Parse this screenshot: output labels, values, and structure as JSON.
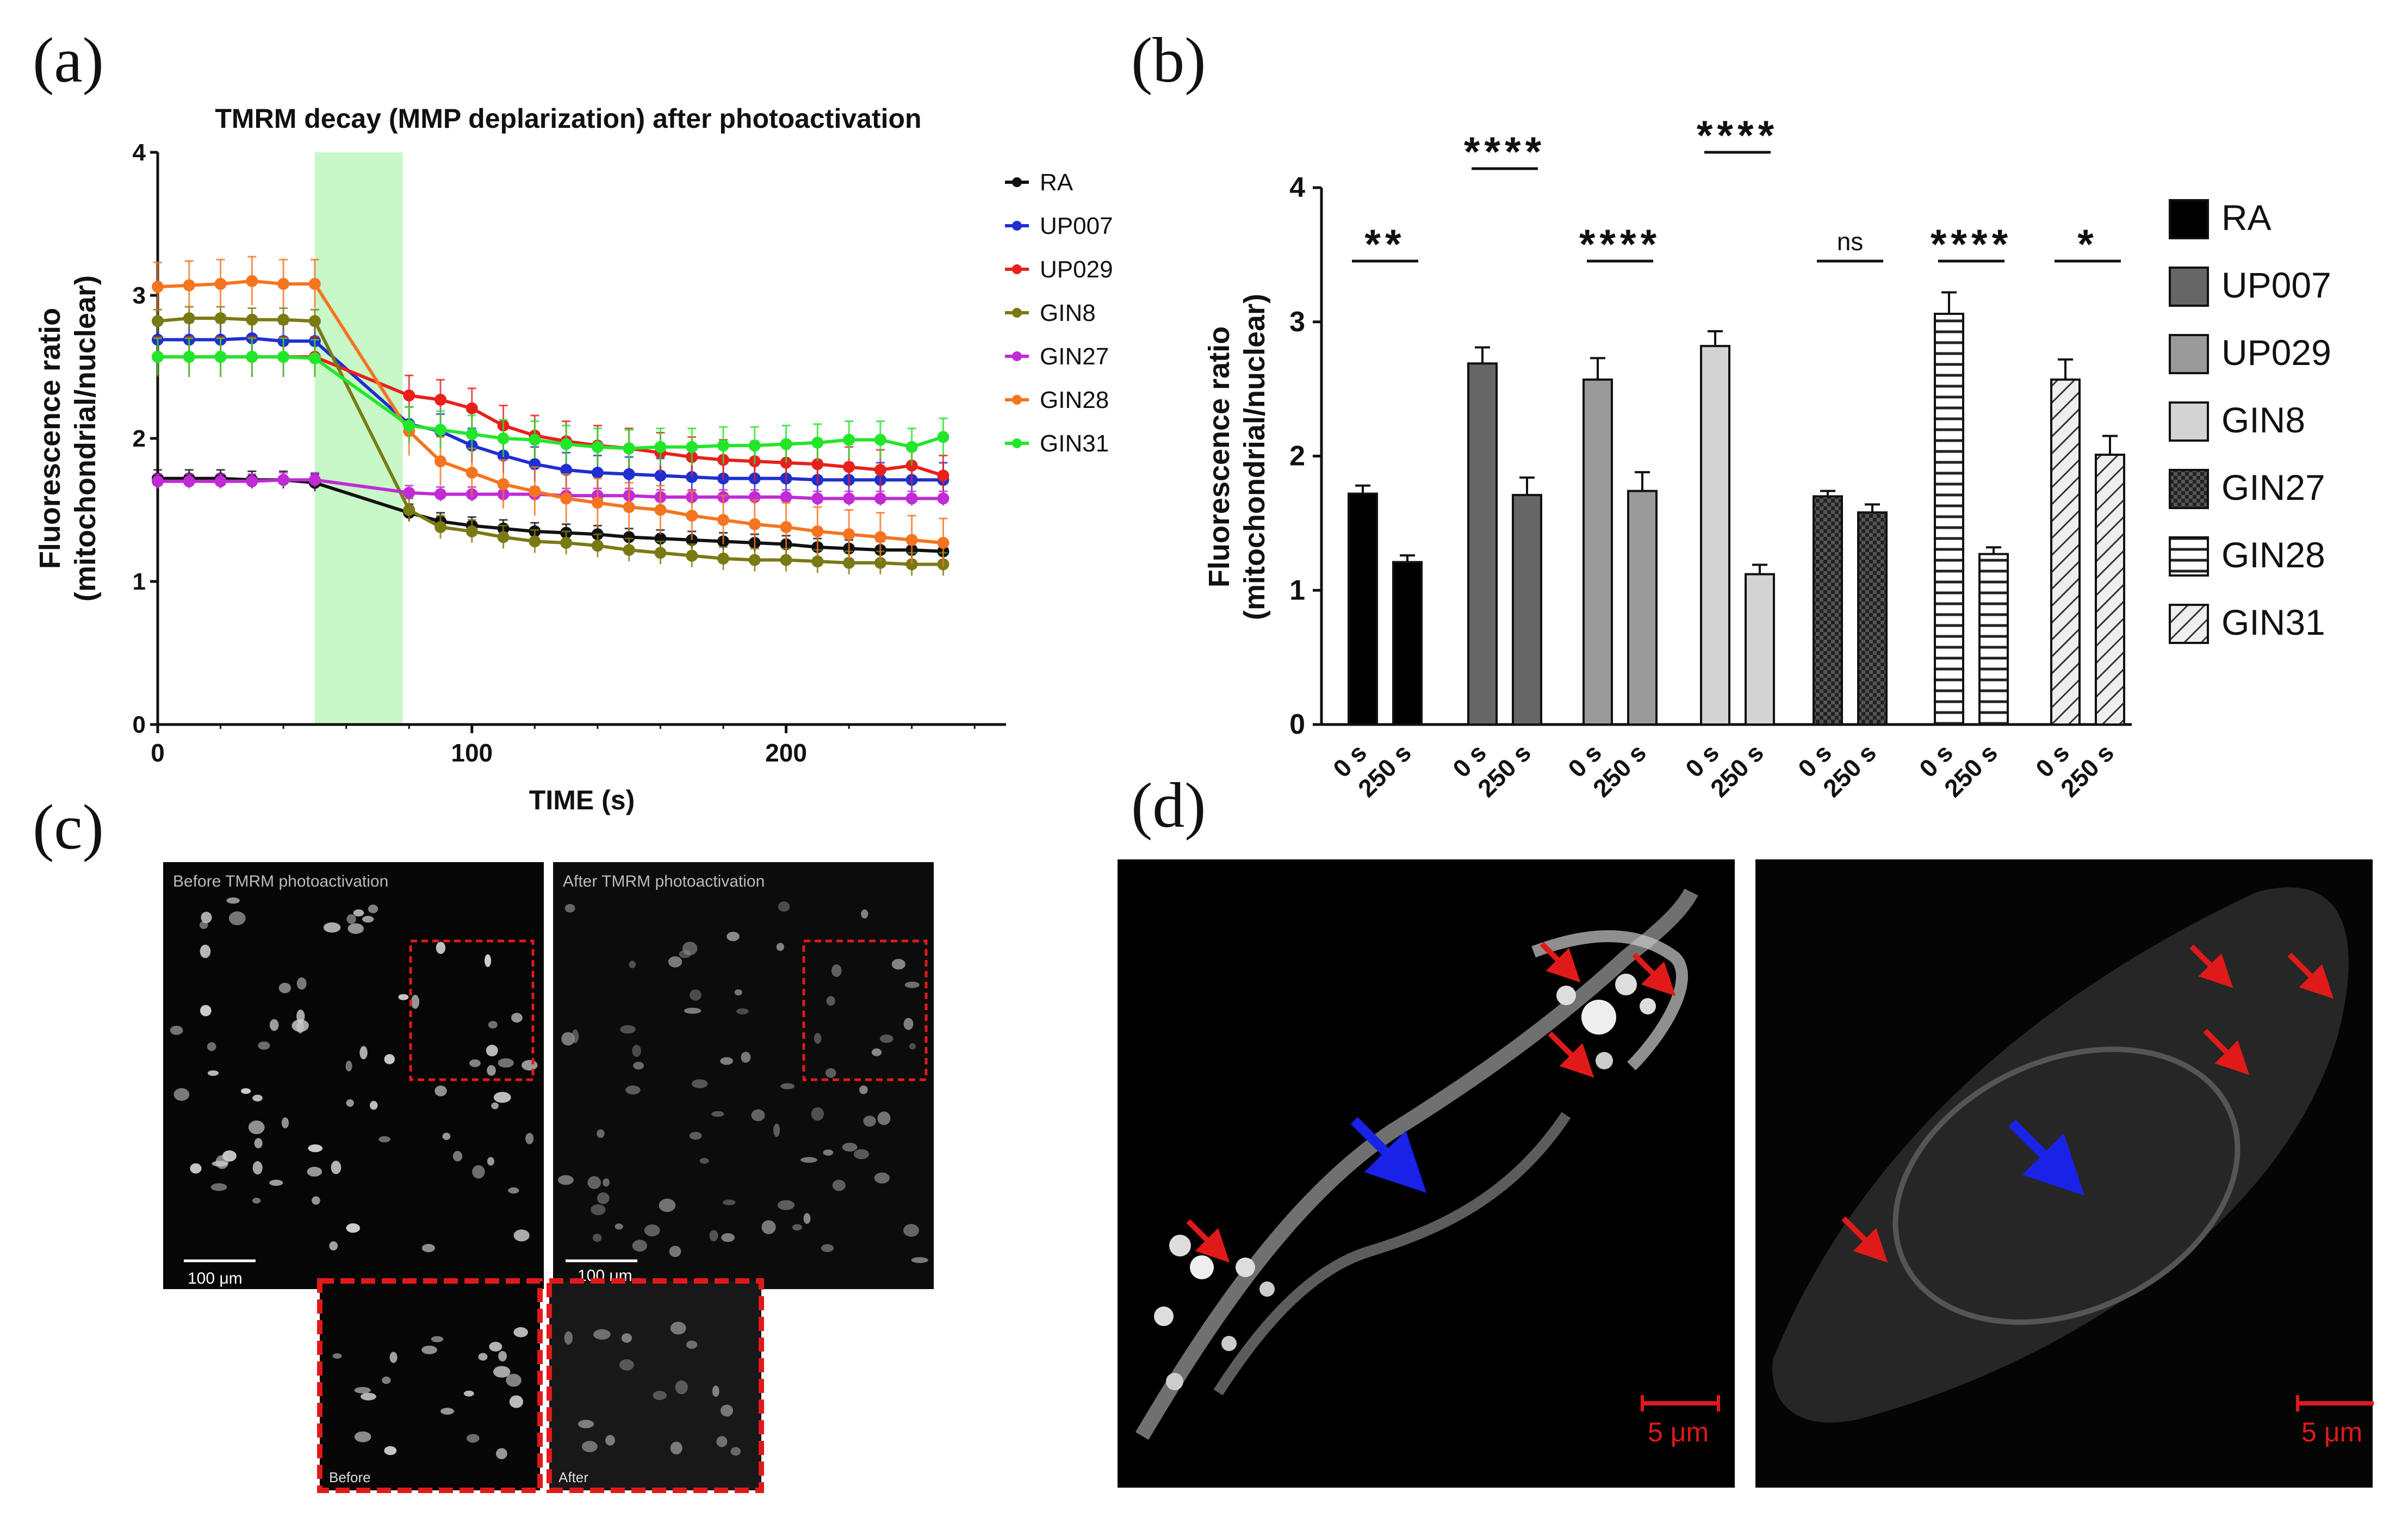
{
  "panel_labels": {
    "a": "(a)",
    "b": "(b)",
    "c": "(c)",
    "d": "(d)"
  },
  "colors": {
    "RA": "#111111",
    "UP007": "#1f2fd0",
    "UP029": "#e8201c",
    "GIN8": "#7a7a14",
    "GIN27": "#c02bd6",
    "GIN28": "#f57420",
    "GIN31": "#22e62a",
    "photo_band": "#c8f7c8",
    "arrow_red": "#e01a1a",
    "arrow_blue": "#1a22e8"
  },
  "chart_data": [
    {
      "type": "line",
      "title": "TMRM decay (MMP deplarization) after photoactivation",
      "xlabel": "TIME (s)",
      "ylabel_line1": "Fluorescence ratio",
      "ylabel_line2": "(mitochondrial/nuclear)",
      "xlim": [
        0,
        270
      ],
      "ylim": [
        0,
        4
      ],
      "xticks": [
        0,
        100,
        200
      ],
      "yticks": [
        0,
        1,
        2,
        3,
        4
      ],
      "highlight_band": [
        50,
        78
      ],
      "x": [
        0,
        10,
        20,
        30,
        40,
        50,
        80,
        90,
        100,
        110,
        120,
        130,
        140,
        150,
        160,
        170,
        180,
        190,
        200,
        210,
        220,
        230,
        240,
        250
      ],
      "series": [
        {
          "name": "RA",
          "values": [
            1.72,
            1.72,
            1.72,
            1.71,
            1.71,
            1.69,
            1.48,
            1.42,
            1.39,
            1.37,
            1.35,
            1.34,
            1.33,
            1.31,
            1.3,
            1.29,
            1.28,
            1.27,
            1.26,
            1.24,
            1.23,
            1.22,
            1.22,
            1.21
          ],
          "err": 0.06
        },
        {
          "name": "UP007",
          "values": [
            2.69,
            2.69,
            2.69,
            2.7,
            2.68,
            2.68,
            2.1,
            2.05,
            1.95,
            1.88,
            1.82,
            1.78,
            1.76,
            1.75,
            1.74,
            1.73,
            1.72,
            1.72,
            1.72,
            1.71,
            1.71,
            1.71,
            1.71,
            1.71
          ],
          "err": 0.12
        },
        {
          "name": "UP029",
          "values": [
            2.57,
            2.57,
            2.57,
            2.57,
            2.57,
            2.57,
            2.3,
            2.27,
            2.21,
            2.09,
            2.02,
            1.98,
            1.95,
            1.93,
            1.9,
            1.87,
            1.85,
            1.84,
            1.83,
            1.82,
            1.8,
            1.78,
            1.81,
            1.74
          ],
          "err": 0.14
        },
        {
          "name": "GIN8",
          "values": [
            2.82,
            2.84,
            2.84,
            2.83,
            2.83,
            2.82,
            1.5,
            1.38,
            1.35,
            1.31,
            1.28,
            1.27,
            1.25,
            1.22,
            1.2,
            1.18,
            1.16,
            1.15,
            1.15,
            1.14,
            1.13,
            1.13,
            1.12,
            1.12
          ],
          "err": 0.08
        },
        {
          "name": "GIN27",
          "values": [
            1.7,
            1.7,
            1.7,
            1.7,
            1.71,
            1.71,
            1.62,
            1.61,
            1.61,
            1.61,
            1.61,
            1.6,
            1.6,
            1.6,
            1.59,
            1.59,
            1.59,
            1.59,
            1.59,
            1.58,
            1.58,
            1.58,
            1.58,
            1.58
          ],
          "err": 0.05
        },
        {
          "name": "GIN28",
          "values": [
            3.06,
            3.07,
            3.08,
            3.1,
            3.08,
            3.08,
            2.05,
            1.84,
            1.76,
            1.68,
            1.63,
            1.58,
            1.55,
            1.52,
            1.5,
            1.46,
            1.43,
            1.4,
            1.38,
            1.35,
            1.33,
            1.31,
            1.29,
            1.27
          ],
          "err": 0.17
        },
        {
          "name": "GIN31",
          "values": [
            2.57,
            2.57,
            2.57,
            2.57,
            2.57,
            2.56,
            2.09,
            2.06,
            2.03,
            2.0,
            1.99,
            1.96,
            1.94,
            1.93,
            1.94,
            1.94,
            1.95,
            1.95,
            1.96,
            1.97,
            1.99,
            1.99,
            1.94,
            2.01
          ],
          "err": 0.13
        }
      ],
      "legend_position": "right"
    },
    {
      "type": "bar",
      "ylabel_line1": "Fluorescence ratio",
      "ylabel_line2": "(mitochondrial/nuclear)",
      "ylim": [
        0,
        4
      ],
      "yticks": [
        0,
        1,
        2,
        3,
        4
      ],
      "categories": [
        "0 s",
        "250 s"
      ],
      "groups": [
        {
          "name": "RA",
          "pattern": "solid-black",
          "values": [
            1.72,
            1.21
          ],
          "err": [
            0.06,
            0.05
          ],
          "significance": "**"
        },
        {
          "name": "UP007",
          "pattern": "dark-grey",
          "values": [
            2.69,
            1.71
          ],
          "err": [
            0.12,
            0.13
          ],
          "significance": "****"
        },
        {
          "name": "UP029",
          "pattern": "mid-grey",
          "values": [
            2.57,
            1.74
          ],
          "err": [
            0.16,
            0.14
          ],
          "significance": "****"
        },
        {
          "name": "GIN8",
          "pattern": "light-grey",
          "values": [
            2.82,
            1.12
          ],
          "err": [
            0.11,
            0.07
          ],
          "significance": "****"
        },
        {
          "name": "GIN27",
          "pattern": "checker",
          "values": [
            1.7,
            1.58
          ],
          "err": [
            0.04,
            0.06
          ],
          "significance": "ns"
        },
        {
          "name": "GIN28",
          "pattern": "horizontal-lines",
          "values": [
            3.06,
            1.27
          ],
          "err": [
            0.16,
            0.05
          ],
          "significance": "****"
        },
        {
          "name": "GIN31",
          "pattern": "diagonal-lines",
          "values": [
            2.57,
            2.01
          ],
          "err": [
            0.15,
            0.14
          ],
          "significance": "*"
        }
      ],
      "legend_position": "right"
    }
  ],
  "panel_c": {
    "before_caption": "Before TMRM photoactivation",
    "after_caption": "After TMRM photoactivation",
    "scale_before": "100 μm",
    "scale_after": "100 μm",
    "inset_before": "Before",
    "inset_after": "After"
  },
  "panel_d": {
    "scale_left": "5 μm",
    "scale_right": "5 μm"
  }
}
